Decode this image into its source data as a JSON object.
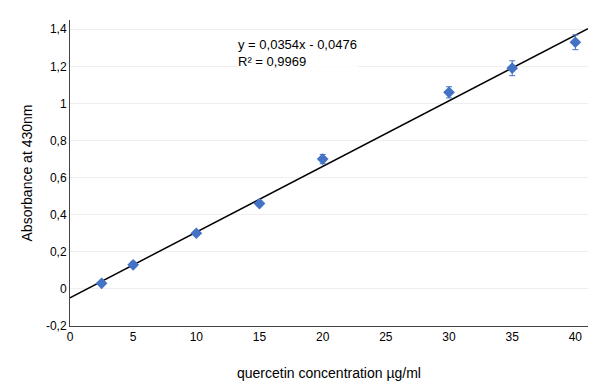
{
  "chart_data": {
    "type": "scatter",
    "xlabel": "quercetin concentration µg/ml",
    "ylabel": "Absorbance at 430nm",
    "annotations": [
      "y = 0,0354x - 0,0476",
      "R² = 0,9969"
    ],
    "series": [
      {
        "type": "line",
        "line_style": "solid",
        "color": "#000000",
        "x": [
          0,
          41
        ],
        "values": [
          -0.0476,
          1.4038
        ]
      },
      {
        "type": "scatter",
        "marker": "diamond",
        "color": "#4472C4",
        "x": [
          2.5,
          5,
          10,
          15,
          20,
          30,
          35,
          40
        ],
        "values": [
          0.03,
          0.13,
          0.3,
          0.46,
          0.7,
          1.06,
          1.19,
          1.33
        ],
        "yerr": [
          0.008,
          0.015,
          0.012,
          0.012,
          0.025,
          0.03,
          0.04,
          0.04
        ]
      }
    ],
    "xlim": [
      0,
      41
    ],
    "ylim": [
      -0.2,
      1.45
    ],
    "xticks": [
      0,
      5,
      10,
      15,
      20,
      25,
      30,
      35,
      40
    ],
    "yticks": [
      {
        "value": -0.2,
        "label": "-0,2"
      },
      0,
      {
        "value": 0.2,
        "label": "0,2"
      },
      {
        "value": 0.4,
        "label": "0,4"
      },
      {
        "value": 0.6,
        "label": "0,6"
      },
      {
        "value": 0.8,
        "label": "0,8"
      },
      1,
      {
        "value": 1.2,
        "label": "1,2"
      },
      {
        "value": 1.4,
        "label": "1,4"
      }
    ],
    "grid": "y"
  }
}
